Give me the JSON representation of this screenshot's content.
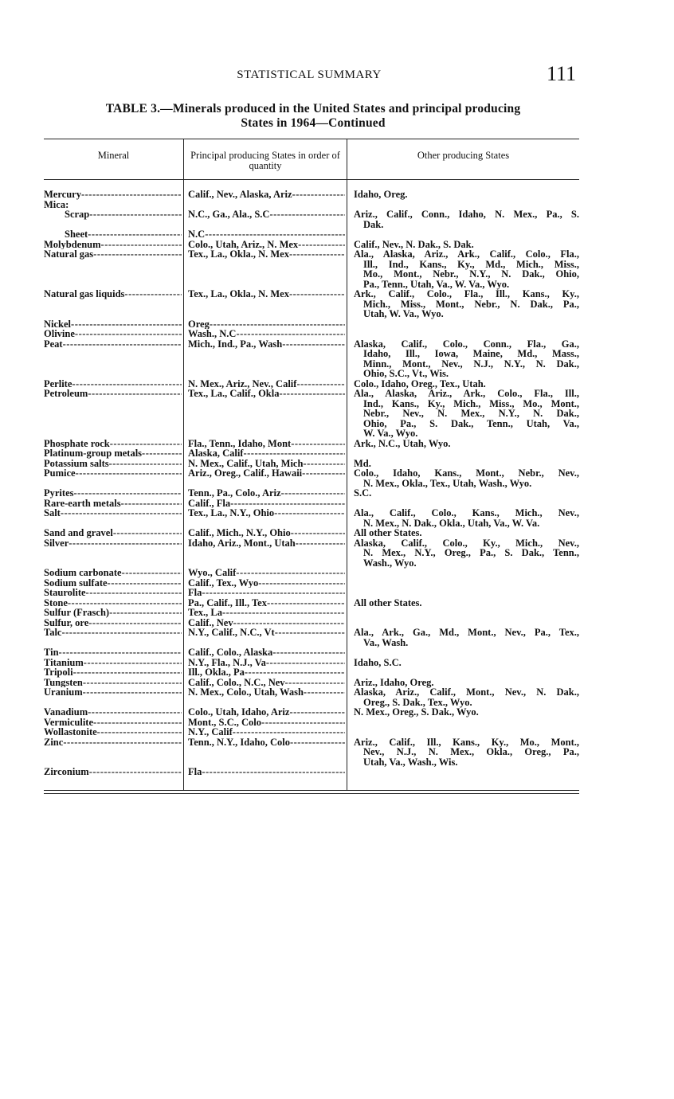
{
  "header": {
    "running_title": "STATISTICAL SUMMARY",
    "page_number": "111"
  },
  "caption": {
    "line1": "TABLE 3.—Minerals produced in the United States and principal producing",
    "line2": "States in 1964—Continued"
  },
  "columns": {
    "mineral": "Mineral",
    "principal": "Principal producing States in order of quantity",
    "other": "Other producing States"
  },
  "rows": [
    {
      "mineral": "Mercury",
      "principal": "Calif., Nev., Alaska, Ariz",
      "other": [
        "Idaho, Oreg."
      ]
    },
    {
      "mineral": "Mica:",
      "principal": "",
      "other": [],
      "group": true
    },
    {
      "mineral": "Scrap",
      "principal": "N.C., Ga., Ala., S.C",
      "other": [
        "Ariz., Calif., Conn., Idaho, N. Mex., Pa., S.",
        "Dak."
      ],
      "sub": true
    },
    {
      "mineral": "Sheet",
      "principal": "N.C",
      "other": [],
      "sub": true
    },
    {
      "mineral": "Molybdenum",
      "principal": "Colo., Utah, Ariz., N. Mex",
      "other": [
        "Calif., Nev., N. Dak., S. Dak."
      ]
    },
    {
      "mineral": "Natural gas",
      "principal": "Tex., La., Okla., N. Mex",
      "other": [
        "Ala., Alaska, Ariz., Ark., Calif., Colo., Fla.,",
        "Ill., Ind., Kans., Ky., Md., Mich., Miss.,",
        "Mo., Mont., Nebr., N.Y., N. Dak., Ohio,",
        "Pa., Tenn., Utah, Va., W. Va., Wyo."
      ]
    },
    {
      "mineral": "Natural gas liquids",
      "principal": "Tex., La., Okla., N. Mex",
      "other": [
        "Ark., Calif., Colo., Fla., Ill., Kans., Ky.,",
        "Mich., Miss., Mont., Nebr., N. Dak., Pa.,",
        "Utah, W. Va., Wyo."
      ]
    },
    {
      "mineral": "Nickel",
      "principal": "Oreg",
      "other": []
    },
    {
      "mineral": "Olivine",
      "principal": "Wash., N.C",
      "other": []
    },
    {
      "mineral": "Peat",
      "principal": "Mich., Ind., Pa., Wash",
      "other": [
        "Alaska, Calif., Colo., Conn., Fla., Ga.,",
        "Idaho, Ill., Iowa, Maine, Md., Mass.,",
        "Minn., Mont., Nev., N.J., N.Y., N. Dak.,",
        "Ohio, S.C., Vt., Wis."
      ]
    },
    {
      "mineral": "Perlite",
      "principal": "N. Mex., Ariz., Nev., Calif",
      "other": [
        "Colo., Idaho, Oreg., Tex., Utah."
      ]
    },
    {
      "mineral": "Petroleum",
      "principal": "Tex., La., Calif., Okla",
      "other": [
        "Ala., Alaska, Ariz., Ark., Colo., Fla., Ill.,",
        "Ind., Kans., Ky., Mich., Miss., Mo., Mont.,",
        "Nebr., Nev., N. Mex., N.Y., N. Dak.,",
        "Ohio, Pa., S. Dak., Tenn., Utah, Va.,",
        "W. Va., Wyo."
      ]
    },
    {
      "mineral": "Phosphate rock",
      "principal": "Fla., Tenn., Idaho, Mont",
      "other": [
        "Ark., N.C., Utah, Wyo."
      ]
    },
    {
      "mineral": "Platinum-group metals",
      "principal": "Alaska, Calif",
      "other": []
    },
    {
      "mineral": "Potassium salts",
      "principal": "N. Mex., Calif., Utah, Mich",
      "other": [
        "Md."
      ]
    },
    {
      "mineral": "Pumice",
      "principal": "Ariz., Oreg., Calif., Hawaii",
      "other": [
        "Colo., Idaho, Kans., Mont., Nebr., Nev.,",
        "N. Mex., Okla., Tex., Utah, Wash., Wyo."
      ]
    },
    {
      "mineral": "Pyrites",
      "principal": "Tenn., Pa., Colo., Ariz",
      "other": [
        "S.C."
      ]
    },
    {
      "mineral": "Rare-earth metals",
      "principal": "Calif., Fla",
      "other": []
    },
    {
      "mineral": "Salt",
      "principal": "Tex., La., N.Y., Ohio",
      "other": [
        "Ala., Calif., Colo., Kans., Mich., Nev.,",
        "N. Mex., N. Dak., Okla., Utah, Va., W. Va."
      ]
    },
    {
      "mineral": "Sand and gravel",
      "principal": "Calif., Mich., N.Y., Ohio",
      "other": [
        "All other States."
      ]
    },
    {
      "mineral": "Silver",
      "principal": "Idaho, Ariz., Mont., Utah",
      "other": [
        "Alaska, Calif., Colo., Ky., Mich., Nev.,",
        "N. Mex., N.Y., Oreg., Pa., S. Dak., Tenn.,",
        "Wash., Wyo."
      ]
    },
    {
      "mineral": "Sodium carbonate",
      "principal": "Wyo., Calif",
      "other": []
    },
    {
      "mineral": "Sodium sulfate",
      "principal": "Calif., Tex., Wyo",
      "other": []
    },
    {
      "mineral": "Staurolite",
      "principal": "Fla",
      "other": []
    },
    {
      "mineral": "Stone",
      "principal": "Pa., Calif., Ill., Tex",
      "other": [
        "All other States."
      ]
    },
    {
      "mineral": "Sulfur (Frasch)",
      "principal": "Tex., La",
      "other": []
    },
    {
      "mineral": "Sulfur, ore",
      "principal": "Calif., Nev",
      "other": []
    },
    {
      "mineral": "Talc",
      "principal": "N.Y., Calif., N.C., Vt",
      "other": [
        "Ala., Ark., Ga., Md., Mont., Nev., Pa., Tex.,",
        "Va., Wash."
      ]
    },
    {
      "mineral": "Tin",
      "principal": "Calif., Colo., Alaska",
      "other": []
    },
    {
      "mineral": "Titanium",
      "principal": "N.Y., Fla., N.J., Va",
      "other": [
        "Idaho, S.C."
      ]
    },
    {
      "mineral": "Tripoli",
      "principal": "Ill., Okla., Pa",
      "other": []
    },
    {
      "mineral": "Tungsten",
      "principal": "Calif., Colo., N.C., Nev",
      "other": [
        "Ariz., Idaho, Oreg."
      ]
    },
    {
      "mineral": "Uranium",
      "principal": "N. Mex., Colo., Utah, Wash",
      "other": [
        "Alaska, Ariz., Calif., Mont., Nev., N. Dak.,",
        "Oreg., S. Dak., Tex., Wyo."
      ]
    },
    {
      "mineral": "Vanadium",
      "principal": "Colo., Utah, Idaho, Ariz",
      "other": [
        "N. Mex., Oreg., S. Dak., Wyo."
      ]
    },
    {
      "mineral": "Vermiculite",
      "principal": "Mont., S.C., Colo",
      "other": []
    },
    {
      "mineral": "Wollastonite",
      "principal": "N.Y., Calif",
      "other": []
    },
    {
      "mineral": "Zinc",
      "principal": "Tenn., N.Y., Idaho, Colo",
      "other": [
        "Ariz., Calif., Ill., Kans., Ky., Mo., Mont.,",
        "Nev., N.J., N. Mex., Okla., Oreg., Pa.,",
        "Utah, Va., Wash., Wis."
      ]
    },
    {
      "mineral": "Zirconium",
      "principal": "Fla",
      "other": []
    }
  ]
}
